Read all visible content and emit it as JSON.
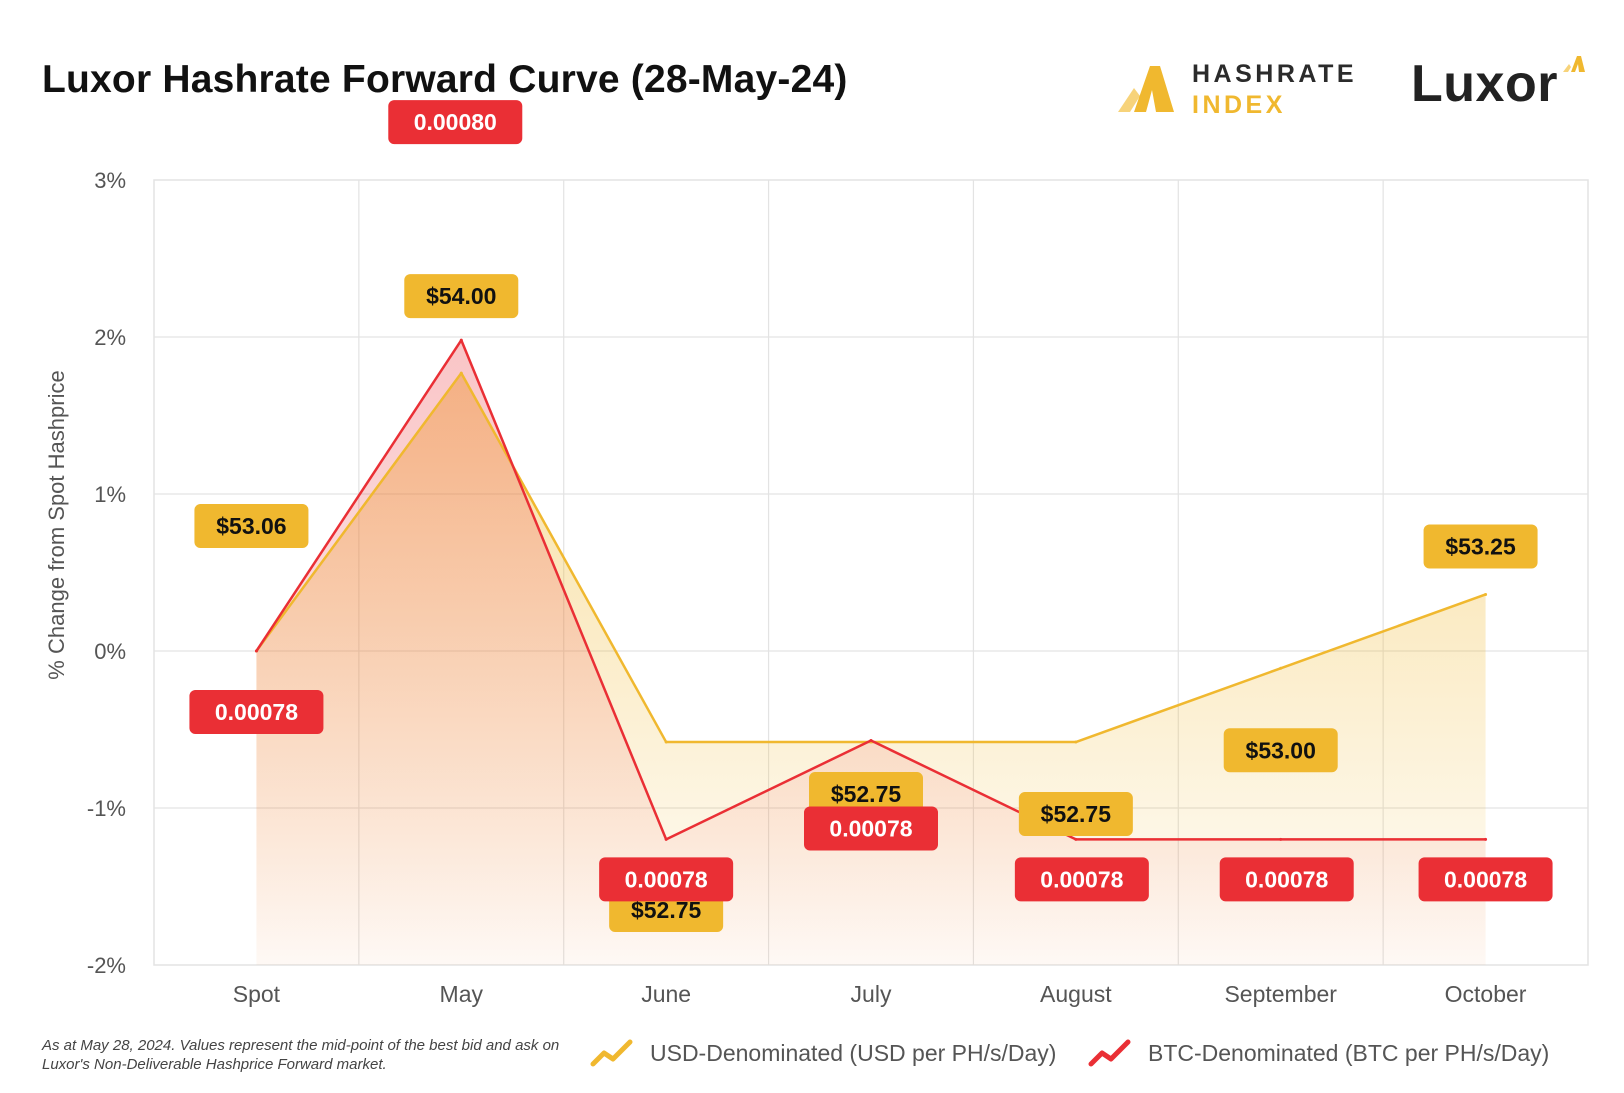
{
  "title": "Luxor Hashrate Forward Curve (28-May-24)",
  "logos": {
    "hashrate_index": {
      "line1": "HASHRATE",
      "line2": "INDEX",
      "icon": "hashrate-index-logo-icon"
    },
    "luxor": {
      "text": "Luxor",
      "icon": "luxor-logo-icon"
    }
  },
  "colors": {
    "usd": "#f0b82f",
    "btc": "#ea2f35",
    "grid": "#e3e3e3",
    "text": "#555555"
  },
  "chart_data": {
    "type": "line",
    "title": "Luxor Hashrate Forward Curve (28-May-24)",
    "xlabel": "",
    "ylabel": "% Change from Spot Hashprice",
    "categories": [
      "Spot",
      "May",
      "June",
      "July",
      "August",
      "September",
      "October"
    ],
    "ylim": [
      -2,
      3
    ],
    "yticks": [
      -2,
      -1,
      0,
      1,
      2,
      3
    ],
    "ytick_labels": [
      "-2%",
      "-1%",
      "0%",
      "1%",
      "2%",
      "3%"
    ],
    "grid": true,
    "series": [
      {
        "name": "USD-Denominated (USD per PH/s/Day)",
        "color": "#f0b82f",
        "values": [
          0,
          1.77,
          -0.58,
          -0.58,
          -0.58,
          -0.11,
          0.36
        ],
        "labels": [
          "$53.06",
          "$54.00",
          "$52.75",
          "$52.75",
          "$52.75",
          "$53.00",
          "$53.25"
        ]
      },
      {
        "name": "BTC-Denominated (BTC per PH/s/Day)",
        "color": "#ea2f35",
        "values": [
          0,
          1.98,
          -1.2,
          -0.57,
          -1.2,
          -1.2,
          -1.2
        ],
        "labels": [
          "0.00078",
          "0.00080",
          "0.00078",
          "0.00078",
          "0.00078",
          "0.00078",
          "0.00078"
        ]
      }
    ],
    "legend_position": "bottom"
  },
  "footnote": "As at May 28, 2024. Values represent the mid-point of the best bid and ask on Luxor's Non-Deliverable Hashprice Forward market."
}
